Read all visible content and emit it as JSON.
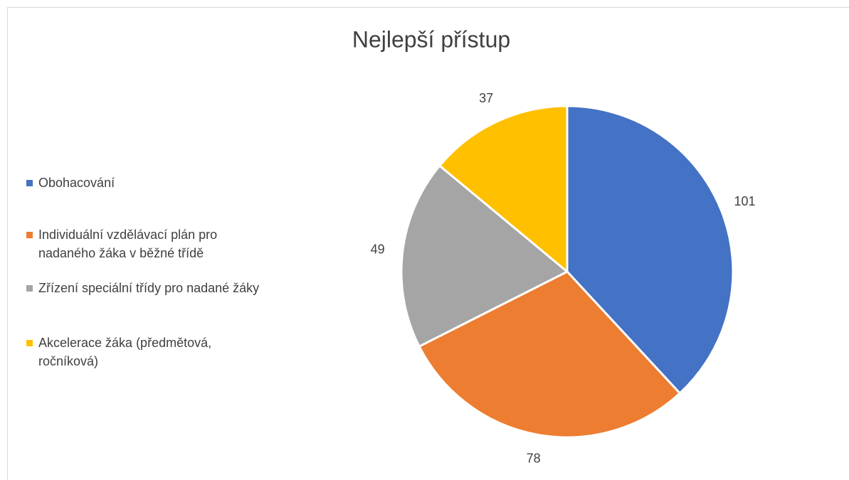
{
  "chart_data": {
    "type": "pie",
    "title": "Nejlepší přístup",
    "categories": [
      "Obohacování",
      "Individuální vzdělávací plán pro nadaného žáka v běžné třídě",
      "Zřízení speciální třídy pro nadané žáky",
      "Akcelerace žáka (předmětová, ročníková)"
    ],
    "values": [
      101,
      78,
      49,
      37
    ],
    "colors": [
      "#4472c4",
      "#ed7d31",
      "#a5a5a5",
      "#ffc000"
    ],
    "legend": "left"
  }
}
